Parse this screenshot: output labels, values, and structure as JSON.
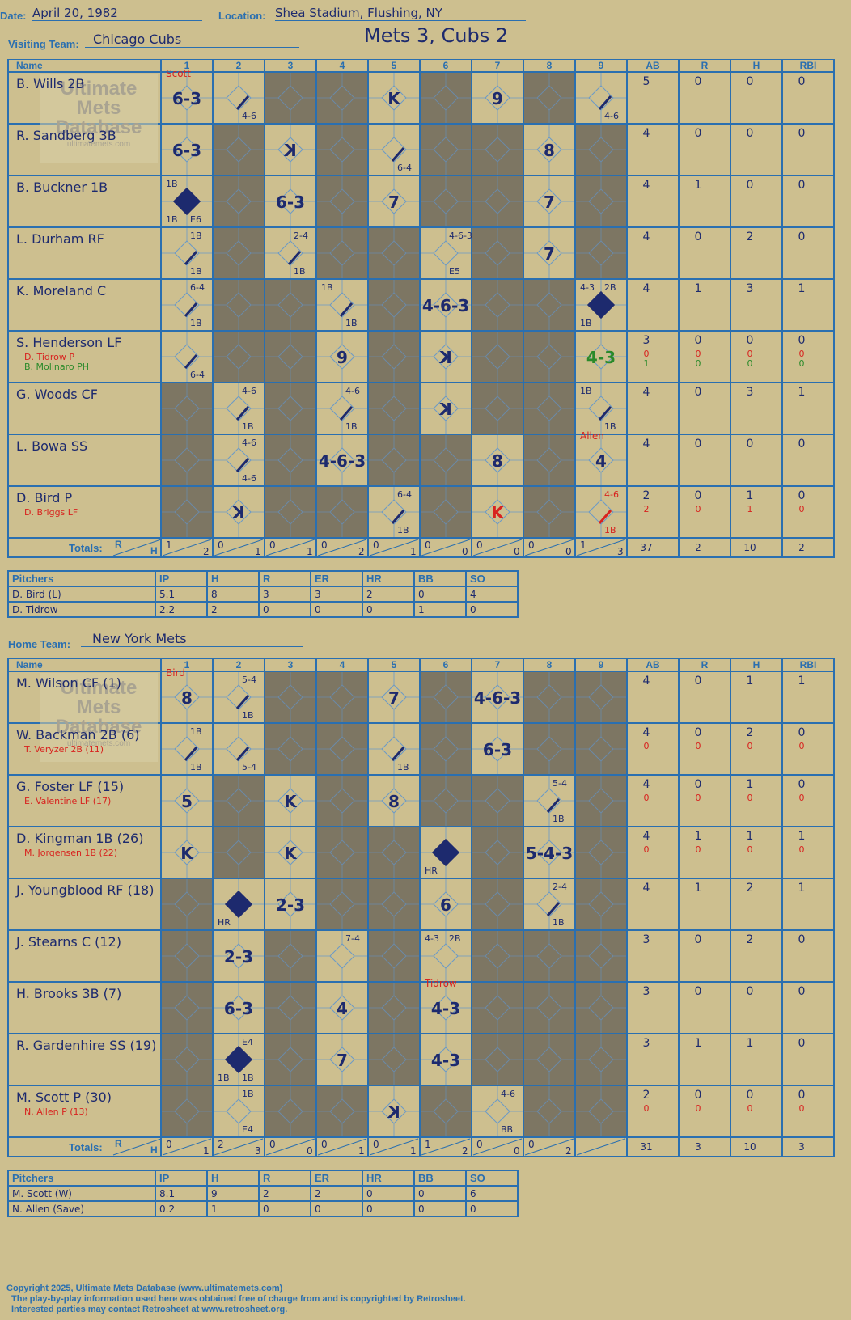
{
  "header": {
    "date_label": "Date:",
    "date": "April 20, 1982",
    "location_label": "Location:",
    "location": "Shea Stadium, Flushing, NY",
    "visiting_label": "Visiting Team:",
    "visiting_team": "Chicago Cubs",
    "home_label": "Home Team:",
    "home_team": "New York Mets",
    "score_title": "Mets 3, Cubs 2"
  },
  "grid_headers": [
    "Name",
    "1",
    "2",
    "3",
    "4",
    "5",
    "6",
    "7",
    "8",
    "9",
    "AB",
    "R",
    "H",
    "RBI"
  ],
  "totals_label": "Totals:",
  "totals_r": "R",
  "totals_h": "H",
  "watermark": {
    "line1": "Ultimate",
    "line2": "Mets",
    "line3": "Database",
    "url": "ultimatemets.com"
  },
  "visitors": {
    "players": [
      {
        "name": "B. Wills 2B",
        "sub": "",
        "stats": [
          "5",
          "0",
          "0",
          "0"
        ],
        "substats": []
      },
      {
        "name": "R. Sandberg 3B",
        "sub": "",
        "stats": [
          "4",
          "0",
          "0",
          "0"
        ],
        "substats": []
      },
      {
        "name": "B. Buckner 1B",
        "sub": "",
        "stats": [
          "4",
          "1",
          "0",
          "0"
        ],
        "substats": []
      },
      {
        "name": "L. Durham RF",
        "sub": "",
        "stats": [
          "4",
          "0",
          "2",
          "0"
        ],
        "substats": []
      },
      {
        "name": "K. Moreland C",
        "sub": "",
        "stats": [
          "4",
          "1",
          "3",
          "1"
        ],
        "substats": []
      },
      {
        "name": "S. Henderson LF",
        "sub": "D. Tidrow P",
        "sub2": "B. Molinaro PH",
        "stats": [
          "3",
          "0",
          "0",
          "0"
        ],
        "substats": [
          "0",
          "0",
          "0",
          "0"
        ],
        "substats2": [
          "1",
          "0",
          "0",
          "0"
        ]
      },
      {
        "name": "G. Woods CF",
        "sub": "",
        "stats": [
          "4",
          "0",
          "3",
          "1"
        ],
        "substats": []
      },
      {
        "name": "L. Bowa SS",
        "sub": "",
        "stats": [
          "4",
          "0",
          "0",
          "0"
        ],
        "substats": []
      },
      {
        "name": "D. Bird P",
        "sub": "D. Briggs LF",
        "stats": [
          "2",
          "0",
          "1",
          "0"
        ],
        "substats": [
          "2",
          "0",
          "1",
          "0"
        ]
      }
    ],
    "totals_innings": [
      [
        "1",
        "2"
      ],
      [
        "0",
        "1"
      ],
      [
        "0",
        "1"
      ],
      [
        "0",
        "2"
      ],
      [
        "0",
        "1"
      ],
      [
        "0",
        "0"
      ],
      [
        "0",
        "0"
      ],
      [
        "0",
        "0"
      ],
      [
        "1",
        "3"
      ]
    ],
    "totals": [
      "37",
      "2",
      "10",
      "2"
    ],
    "plays": [
      {
        "r": 0,
        "c": 0,
        "t": "6-3",
        "big": true
      },
      {
        "r": 0,
        "c": 0,
        "t": "Scott",
        "note": true
      },
      {
        "r": 0,
        "c": 1,
        "t": "4-6",
        "small": true,
        "pos": "br"
      },
      {
        "r": 0,
        "c": 4,
        "t": "K",
        "big": true
      },
      {
        "r": 0,
        "c": 6,
        "t": "9",
        "big": true
      },
      {
        "r": 0,
        "c": 8,
        "t": "4-6",
        "small": true,
        "pos": "br"
      },
      {
        "r": 1,
        "c": 0,
        "t": "6-3",
        "big": true
      },
      {
        "r": 1,
        "c": 2,
        "t": "K",
        "big": true,
        "flip": true
      },
      {
        "r": 1,
        "c": 4,
        "t": "6-4",
        "small": true,
        "pos": "br"
      },
      {
        "r": 1,
        "c": 7,
        "t": "8",
        "big": true
      },
      {
        "r": 2,
        "c": 0,
        "t": "1B",
        "small": true,
        "pos": "tl"
      },
      {
        "r": 2,
        "c": 0,
        "t": "1B",
        "small": true,
        "pos": "bl"
      },
      {
        "r": 2,
        "c": 0,
        "t": "E6",
        "small": true,
        "pos": "br"
      },
      {
        "r": 2,
        "c": 2,
        "t": "6-3",
        "big": true
      },
      {
        "r": 2,
        "c": 4,
        "t": "7",
        "big": true
      },
      {
        "r": 2,
        "c": 7,
        "t": "7",
        "big": true
      },
      {
        "r": 3,
        "c": 0,
        "t": "1B",
        "small": true,
        "pos": "tr"
      },
      {
        "r": 3,
        "c": 0,
        "t": "1B",
        "small": true,
        "pos": "br"
      },
      {
        "r": 3,
        "c": 2,
        "t": "2-4",
        "small": true,
        "pos": "tr"
      },
      {
        "r": 3,
        "c": 2,
        "t": "1B",
        "small": true,
        "pos": "br"
      },
      {
        "r": 3,
        "c": 5,
        "t": "4-6-3",
        "small": true,
        "pos": "tr"
      },
      {
        "r": 3,
        "c": 5,
        "t": "E5",
        "small": true,
        "pos": "br"
      },
      {
        "r": 3,
        "c": 7,
        "t": "7",
        "big": true
      },
      {
        "r": 4,
        "c": 0,
        "t": "6-4",
        "small": true,
        "pos": "tr"
      },
      {
        "r": 4,
        "c": 0,
        "t": "1B",
        "small": true,
        "pos": "br"
      },
      {
        "r": 4,
        "c": 3,
        "t": "1B",
        "small": true,
        "pos": "tl"
      },
      {
        "r": 4,
        "c": 3,
        "t": "1B",
        "small": true,
        "pos": "br"
      },
      {
        "r": 4,
        "c": 5,
        "t": "4-6-3",
        "big": true
      },
      {
        "r": 4,
        "c": 8,
        "t": "4-3",
        "small": true,
        "pos": "tl"
      },
      {
        "r": 4,
        "c": 8,
        "t": "2B",
        "small": true,
        "pos": "tr"
      },
      {
        "r": 4,
        "c": 8,
        "t": "1B",
        "small": true,
        "pos": "bl"
      },
      {
        "r": 5,
        "c": 0,
        "t": "6-4",
        "small": true,
        "pos": "br"
      },
      {
        "r": 5,
        "c": 3,
        "t": "9",
        "big": true
      },
      {
        "r": 5,
        "c": 5,
        "t": "K",
        "big": true,
        "flip": true
      },
      {
        "r": 5,
        "c": 8,
        "t": "4-3",
        "big": true,
        "green": true
      },
      {
        "r": 6,
        "c": 1,
        "t": "4-6",
        "small": true,
        "pos": "tr"
      },
      {
        "r": 6,
        "c": 1,
        "t": "1B",
        "small": true,
        "pos": "br"
      },
      {
        "r": 6,
        "c": 3,
        "t": "4-6",
        "small": true,
        "pos": "tr"
      },
      {
        "r": 6,
        "c": 3,
        "t": "1B",
        "small": true,
        "pos": "br"
      },
      {
        "r": 6,
        "c": 5,
        "t": "K",
        "big": true,
        "flip": true
      },
      {
        "r": 6,
        "c": 8,
        "t": "1B",
        "small": true,
        "pos": "tl"
      },
      {
        "r": 6,
        "c": 8,
        "t": "1B",
        "small": true,
        "pos": "br"
      },
      {
        "r": 7,
        "c": 1,
        "t": "4-6",
        "small": true,
        "pos": "tr"
      },
      {
        "r": 7,
        "c": 1,
        "t": "4-6",
        "small": true,
        "pos": "br"
      },
      {
        "r": 7,
        "c": 3,
        "t": "4-6-3",
        "big": true
      },
      {
        "r": 7,
        "c": 6,
        "t": "8",
        "big": true
      },
      {
        "r": 7,
        "c": 8,
        "t": "Allen",
        "note": true
      },
      {
        "r": 7,
        "c": 8,
        "t": "4",
        "big": true
      },
      {
        "r": 8,
        "c": 1,
        "t": "K",
        "big": true,
        "flip": true
      },
      {
        "r": 8,
        "c": 4,
        "t": "6-4",
        "small": true,
        "pos": "tr"
      },
      {
        "r": 8,
        "c": 4,
        "t": "1B",
        "small": true,
        "pos": "br"
      },
      {
        "r": 8,
        "c": 6,
        "t": "K",
        "big": true,
        "red": true
      },
      {
        "r": 8,
        "c": 8,
        "t": "4-6",
        "small": true,
        "pos": "tr",
        "red": true
      },
      {
        "r": 8,
        "c": 8,
        "t": "1B",
        "small": true,
        "pos": "br",
        "red": true
      }
    ],
    "pitchers": [
      {
        "name": "D. Bird (L)",
        "ip": "5.1",
        "h": "8",
        "r": "3",
        "er": "3",
        "hr": "2",
        "bb": "0",
        "so": "4"
      },
      {
        "name": "D. Tidrow",
        "ip": "2.2",
        "h": "2",
        "r": "0",
        "er": "0",
        "hr": "0",
        "bb": "1",
        "so": "0"
      }
    ]
  },
  "home": {
    "players": [
      {
        "name": "M. Wilson CF (1)",
        "sub": "",
        "stats": [
          "4",
          "0",
          "1",
          "1"
        ],
        "substats": []
      },
      {
        "name": "W. Backman 2B (6)",
        "sub": "T. Veryzer 2B (11)",
        "stats": [
          "4",
          "0",
          "2",
          "0"
        ],
        "substats": [
          "0",
          "0",
          "0",
          "0"
        ]
      },
      {
        "name": "G. Foster LF (15)",
        "sub": "E. Valentine LF (17)",
        "stats": [
          "4",
          "0",
          "1",
          "0"
        ],
        "substats": [
          "0",
          "0",
          "0",
          "0"
        ]
      },
      {
        "name": "D. Kingman 1B (26)",
        "sub": "M. Jorgensen 1B (22)",
        "stats": [
          "4",
          "1",
          "1",
          "1"
        ],
        "substats": [
          "0",
          "0",
          "0",
          "0"
        ]
      },
      {
        "name": "J. Youngblood RF (18)",
        "sub": "",
        "stats": [
          "4",
          "1",
          "2",
          "1"
        ],
        "substats": []
      },
      {
        "name": "J. Stearns C (12)",
        "sub": "",
        "stats": [
          "3",
          "0",
          "2",
          "0"
        ],
        "substats": []
      },
      {
        "name": "H. Brooks 3B (7)",
        "sub": "",
        "stats": [
          "3",
          "0",
          "0",
          "0"
        ],
        "substats": []
      },
      {
        "name": "R. Gardenhire SS (19)",
        "sub": "",
        "stats": [
          "3",
          "1",
          "1",
          "0"
        ],
        "substats": []
      },
      {
        "name": "M. Scott P (30)",
        "sub": "N. Allen P (13)",
        "stats": [
          "2",
          "0",
          "0",
          "0"
        ],
        "substats": [
          "0",
          "0",
          "0",
          "0"
        ]
      }
    ],
    "totals_innings": [
      [
        "0",
        "1"
      ],
      [
        "2",
        "3"
      ],
      [
        "0",
        "0"
      ],
      [
        "0",
        "1"
      ],
      [
        "0",
        "1"
      ],
      [
        "1",
        "2"
      ],
      [
        "0",
        "0"
      ],
      [
        "0",
        "2"
      ],
      [
        "",
        ""
      ]
    ],
    "totals": [
      "31",
      "3",
      "10",
      "3"
    ],
    "plays": [
      {
        "r": 0,
        "c": 0,
        "t": "Bird",
        "note": true
      },
      {
        "r": 0,
        "c": 0,
        "t": "8",
        "big": true
      },
      {
        "r": 0,
        "c": 1,
        "t": "5-4",
        "small": true,
        "pos": "tr"
      },
      {
        "r": 0,
        "c": 1,
        "t": "1B",
        "small": true,
        "pos": "br"
      },
      {
        "r": 0,
        "c": 4,
        "t": "7",
        "big": true
      },
      {
        "r": 0,
        "c": 6,
        "t": "4-6-3",
        "big": true
      },
      {
        "r": 1,
        "c": 0,
        "t": "1B",
        "small": true,
        "pos": "tr"
      },
      {
        "r": 1,
        "c": 0,
        "t": "1B",
        "small": true,
        "pos": "br"
      },
      {
        "r": 1,
        "c": 1,
        "t": "5-4",
        "small": true,
        "pos": "br"
      },
      {
        "r": 1,
        "c": 4,
        "t": "1B",
        "small": true,
        "pos": "br"
      },
      {
        "r": 1,
        "c": 6,
        "t": "6-3",
        "big": true
      },
      {
        "r": 2,
        "c": 0,
        "t": "5",
        "big": true
      },
      {
        "r": 2,
        "c": 2,
        "t": "K",
        "big": true
      },
      {
        "r": 2,
        "c": 4,
        "t": "8",
        "big": true
      },
      {
        "r": 2,
        "c": 7,
        "t": "5-4",
        "small": true,
        "pos": "tr"
      },
      {
        "r": 2,
        "c": 7,
        "t": "1B",
        "small": true,
        "pos": "br"
      },
      {
        "r": 3,
        "c": 0,
        "t": "K",
        "big": true
      },
      {
        "r": 3,
        "c": 2,
        "t": "K",
        "big": true
      },
      {
        "r": 3,
        "c": 5,
        "t": "HR",
        "small": true,
        "pos": "bl"
      },
      {
        "r": 3,
        "c": 7,
        "t": "5-4-3",
        "big": true
      },
      {
        "r": 4,
        "c": 1,
        "t": "HR",
        "small": true,
        "pos": "bl"
      },
      {
        "r": 4,
        "c": 2,
        "t": "2-3",
        "big": true
      },
      {
        "r": 4,
        "c": 5,
        "t": "6",
        "big": true
      },
      {
        "r": 4,
        "c": 7,
        "t": "2-4",
        "small": true,
        "pos": "tr"
      },
      {
        "r": 4,
        "c": 7,
        "t": "1B",
        "small": true,
        "pos": "br"
      },
      {
        "r": 5,
        "c": 1,
        "t": "2-3",
        "big": true
      },
      {
        "r": 5,
        "c": 3,
        "t": "7-4",
        "small": true,
        "pos": "tr"
      },
      {
        "r": 5,
        "c": 5,
        "t": "4-3",
        "small": true,
        "pos": "tl"
      },
      {
        "r": 5,
        "c": 5,
        "t": "2B",
        "small": true,
        "pos": "tr"
      },
      {
        "r": 6,
        "c": 1,
        "t": "6-3",
        "big": true
      },
      {
        "r": 6,
        "c": 3,
        "t": "4",
        "big": true
      },
      {
        "r": 6,
        "c": 5,
        "t": "Tidrow",
        "note": true
      },
      {
        "r": 6,
        "c": 5,
        "t": "4-3",
        "big": true
      },
      {
        "r": 7,
        "c": 1,
        "t": "E4",
        "small": true,
        "pos": "tr"
      },
      {
        "r": 7,
        "c": 1,
        "t": "1B",
        "small": true,
        "pos": "bl"
      },
      {
        "r": 7,
        "c": 1,
        "t": "1B",
        "small": true,
        "pos": "br"
      },
      {
        "r": 7,
        "c": 3,
        "t": "7",
        "big": true
      },
      {
        "r": 7,
        "c": 5,
        "t": "4-3",
        "big": true
      },
      {
        "r": 8,
        "c": 1,
        "t": "1B",
        "small": true,
        "pos": "tr"
      },
      {
        "r": 8,
        "c": 1,
        "t": "E4",
        "small": true,
        "pos": "br"
      },
      {
        "r": 8,
        "c": 4,
        "t": "K",
        "big": true,
        "flip": true
      },
      {
        "r": 8,
        "c": 6,
        "t": "4-6",
        "small": true,
        "pos": "tr"
      },
      {
        "r": 8,
        "c": 6,
        "t": "BB",
        "small": true,
        "pos": "br"
      }
    ],
    "pitchers": [
      {
        "name": "M. Scott (W)",
        "ip": "8.1",
        "h": "9",
        "r": "2",
        "er": "2",
        "hr": "0",
        "bb": "0",
        "so": "6"
      },
      {
        "name": "N. Allen (Save)",
        "ip": "0.2",
        "h": "1",
        "r": "0",
        "er": "0",
        "hr": "0",
        "bb": "0",
        "so": "0"
      }
    ]
  },
  "pitcher_headers": [
    "Pitchers",
    "IP",
    "H",
    "R",
    "ER",
    "HR",
    "BB",
    "SO"
  ],
  "footer": {
    "line1": "Copyright 2025, Ultimate Mets Database (www.ultimatemets.com)",
    "line2": "The play-by-play information used here was obtained free of charge from and is copyrighted by Retrosheet.",
    "line3": "Interested parties may contact Retrosheet at www.retrosheet.org."
  }
}
